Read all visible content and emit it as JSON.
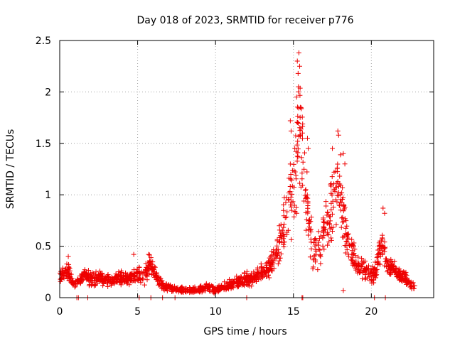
{
  "chart_data": {
    "type": "scatter",
    "title": "Day 018 of 2023, SRMTID for receiver p776",
    "xlabel": "GPS time / hours",
    "ylabel": "SRMTID / TECUs",
    "xlim": [
      0,
      24
    ],
    "ylim": [
      0,
      2.5
    ],
    "x_ticks": [
      0,
      5,
      10,
      15,
      20
    ],
    "x_tick_labels": [
      "0",
      "5",
      "10",
      "15",
      "20"
    ],
    "y_ticks": [
      0,
      0.5,
      1,
      1.5,
      2,
      2.5
    ],
    "y_tick_labels": [
      "0",
      "0.5",
      "1",
      "1.5",
      "2",
      "2.5"
    ],
    "grid": true,
    "marker": "+",
    "color": "#ee0000",
    "series": [
      {
        "name": "SRMTID",
        "profile_x": [
          0,
          0.3,
          0.5,
          0.7,
          0.9,
          1.2,
          1.5,
          2.0,
          2.5,
          3.0,
          3.5,
          4.0,
          4.5,
          5.0,
          5.3,
          5.6,
          5.8,
          6.0,
          6.3,
          6.6,
          7.0,
          7.5,
          8.0,
          8.5,
          9.0,
          9.5,
          10.0,
          10.5,
          11.0,
          11.5,
          12.0,
          12.5,
          13.0,
          13.5,
          14.0,
          14.3,
          14.6,
          14.9,
          15.1,
          15.3,
          15.5,
          15.7,
          15.9,
          16.2,
          16.5,
          16.8,
          17.0,
          17.3,
          17.6,
          17.8,
          18.0,
          18.2,
          18.4,
          18.7,
          19.0,
          19.5,
          20.0,
          20.3,
          20.6,
          20.8,
          21.0,
          21.3,
          21.6,
          22.0,
          22.4,
          22.8
        ],
        "profile_y": [
          0.2,
          0.25,
          0.28,
          0.2,
          0.12,
          0.15,
          0.22,
          0.18,
          0.2,
          0.17,
          0.16,
          0.2,
          0.18,
          0.22,
          0.2,
          0.25,
          0.32,
          0.25,
          0.18,
          0.12,
          0.1,
          0.08,
          0.07,
          0.07,
          0.08,
          0.1,
          0.07,
          0.1,
          0.13,
          0.15,
          0.18,
          0.2,
          0.25,
          0.3,
          0.45,
          0.6,
          0.8,
          1.0,
          1.25,
          1.6,
          1.7,
          1.2,
          0.8,
          0.5,
          0.4,
          0.55,
          0.7,
          0.75,
          1.0,
          1.2,
          1.05,
          0.8,
          0.6,
          0.45,
          0.35,
          0.3,
          0.22,
          0.25,
          0.55,
          0.5,
          0.3,
          0.3,
          0.25,
          0.2,
          0.15,
          0.1
        ],
        "spread": [
          0.06,
          0.08,
          0.1,
          0.06,
          0.04,
          0.06,
          0.07,
          0.07,
          0.07,
          0.06,
          0.06,
          0.07,
          0.07,
          0.08,
          0.08,
          0.1,
          0.1,
          0.08,
          0.06,
          0.04,
          0.04,
          0.03,
          0.03,
          0.03,
          0.04,
          0.04,
          0.03,
          0.04,
          0.05,
          0.06,
          0.06,
          0.07,
          0.08,
          0.1,
          0.15,
          0.25,
          0.35,
          0.45,
          0.55,
          0.75,
          0.7,
          0.5,
          0.35,
          0.2,
          0.15,
          0.2,
          0.25,
          0.3,
          0.35,
          0.4,
          0.35,
          0.3,
          0.2,
          0.15,
          0.12,
          0.1,
          0.08,
          0.1,
          0.2,
          0.15,
          0.1,
          0.1,
          0.08,
          0.07,
          0.06,
          0.04
        ],
        "peaks": [
          {
            "x": 15.35,
            "y": 2.38
          },
          {
            "x": 15.25,
            "y": 2.3
          },
          {
            "x": 15.4,
            "y": 2.25
          },
          {
            "x": 15.3,
            "y": 2.18
          },
          {
            "x": 15.32,
            "y": 2.05
          },
          {
            "x": 15.45,
            "y": 1.85
          },
          {
            "x": 15.2,
            "y": 1.95
          },
          {
            "x": 14.8,
            "y": 1.72
          },
          {
            "x": 14.85,
            "y": 1.62
          },
          {
            "x": 15.9,
            "y": 1.55
          },
          {
            "x": 15.95,
            "y": 1.45
          },
          {
            "x": 17.85,
            "y": 1.62
          },
          {
            "x": 17.9,
            "y": 1.58
          },
          {
            "x": 17.5,
            "y": 1.45
          },
          {
            "x": 18.2,
            "y": 1.4
          },
          {
            "x": 18.3,
            "y": 1.3
          },
          {
            "x": 20.75,
            "y": 0.87
          },
          {
            "x": 20.85,
            "y": 0.82
          },
          {
            "x": 5.7,
            "y": 0.42
          },
          {
            "x": 0.55,
            "y": 0.4
          },
          {
            "x": 4.75,
            "y": 0.42
          },
          {
            "x": 15.55,
            "y": 0.0
          },
          {
            "x": 15.6,
            "y": 0.0
          },
          {
            "x": 20.2,
            "y": 0.0
          },
          {
            "x": 20.9,
            "y": 0.0
          },
          {
            "x": 1.1,
            "y": 0.0
          },
          {
            "x": 1.2,
            "y": 0.0
          },
          {
            "x": 1.8,
            "y": 0.0
          },
          {
            "x": 5.1,
            "y": 0.0
          },
          {
            "x": 5.85,
            "y": 0.0
          },
          {
            "x": 6.6,
            "y": 0.0
          },
          {
            "x": 7.4,
            "y": 0.0
          },
          {
            "x": 12.0,
            "y": 0.0
          },
          {
            "x": 18.2,
            "y": 0.07
          }
        ],
        "n_points": 1600
      }
    ]
  }
}
